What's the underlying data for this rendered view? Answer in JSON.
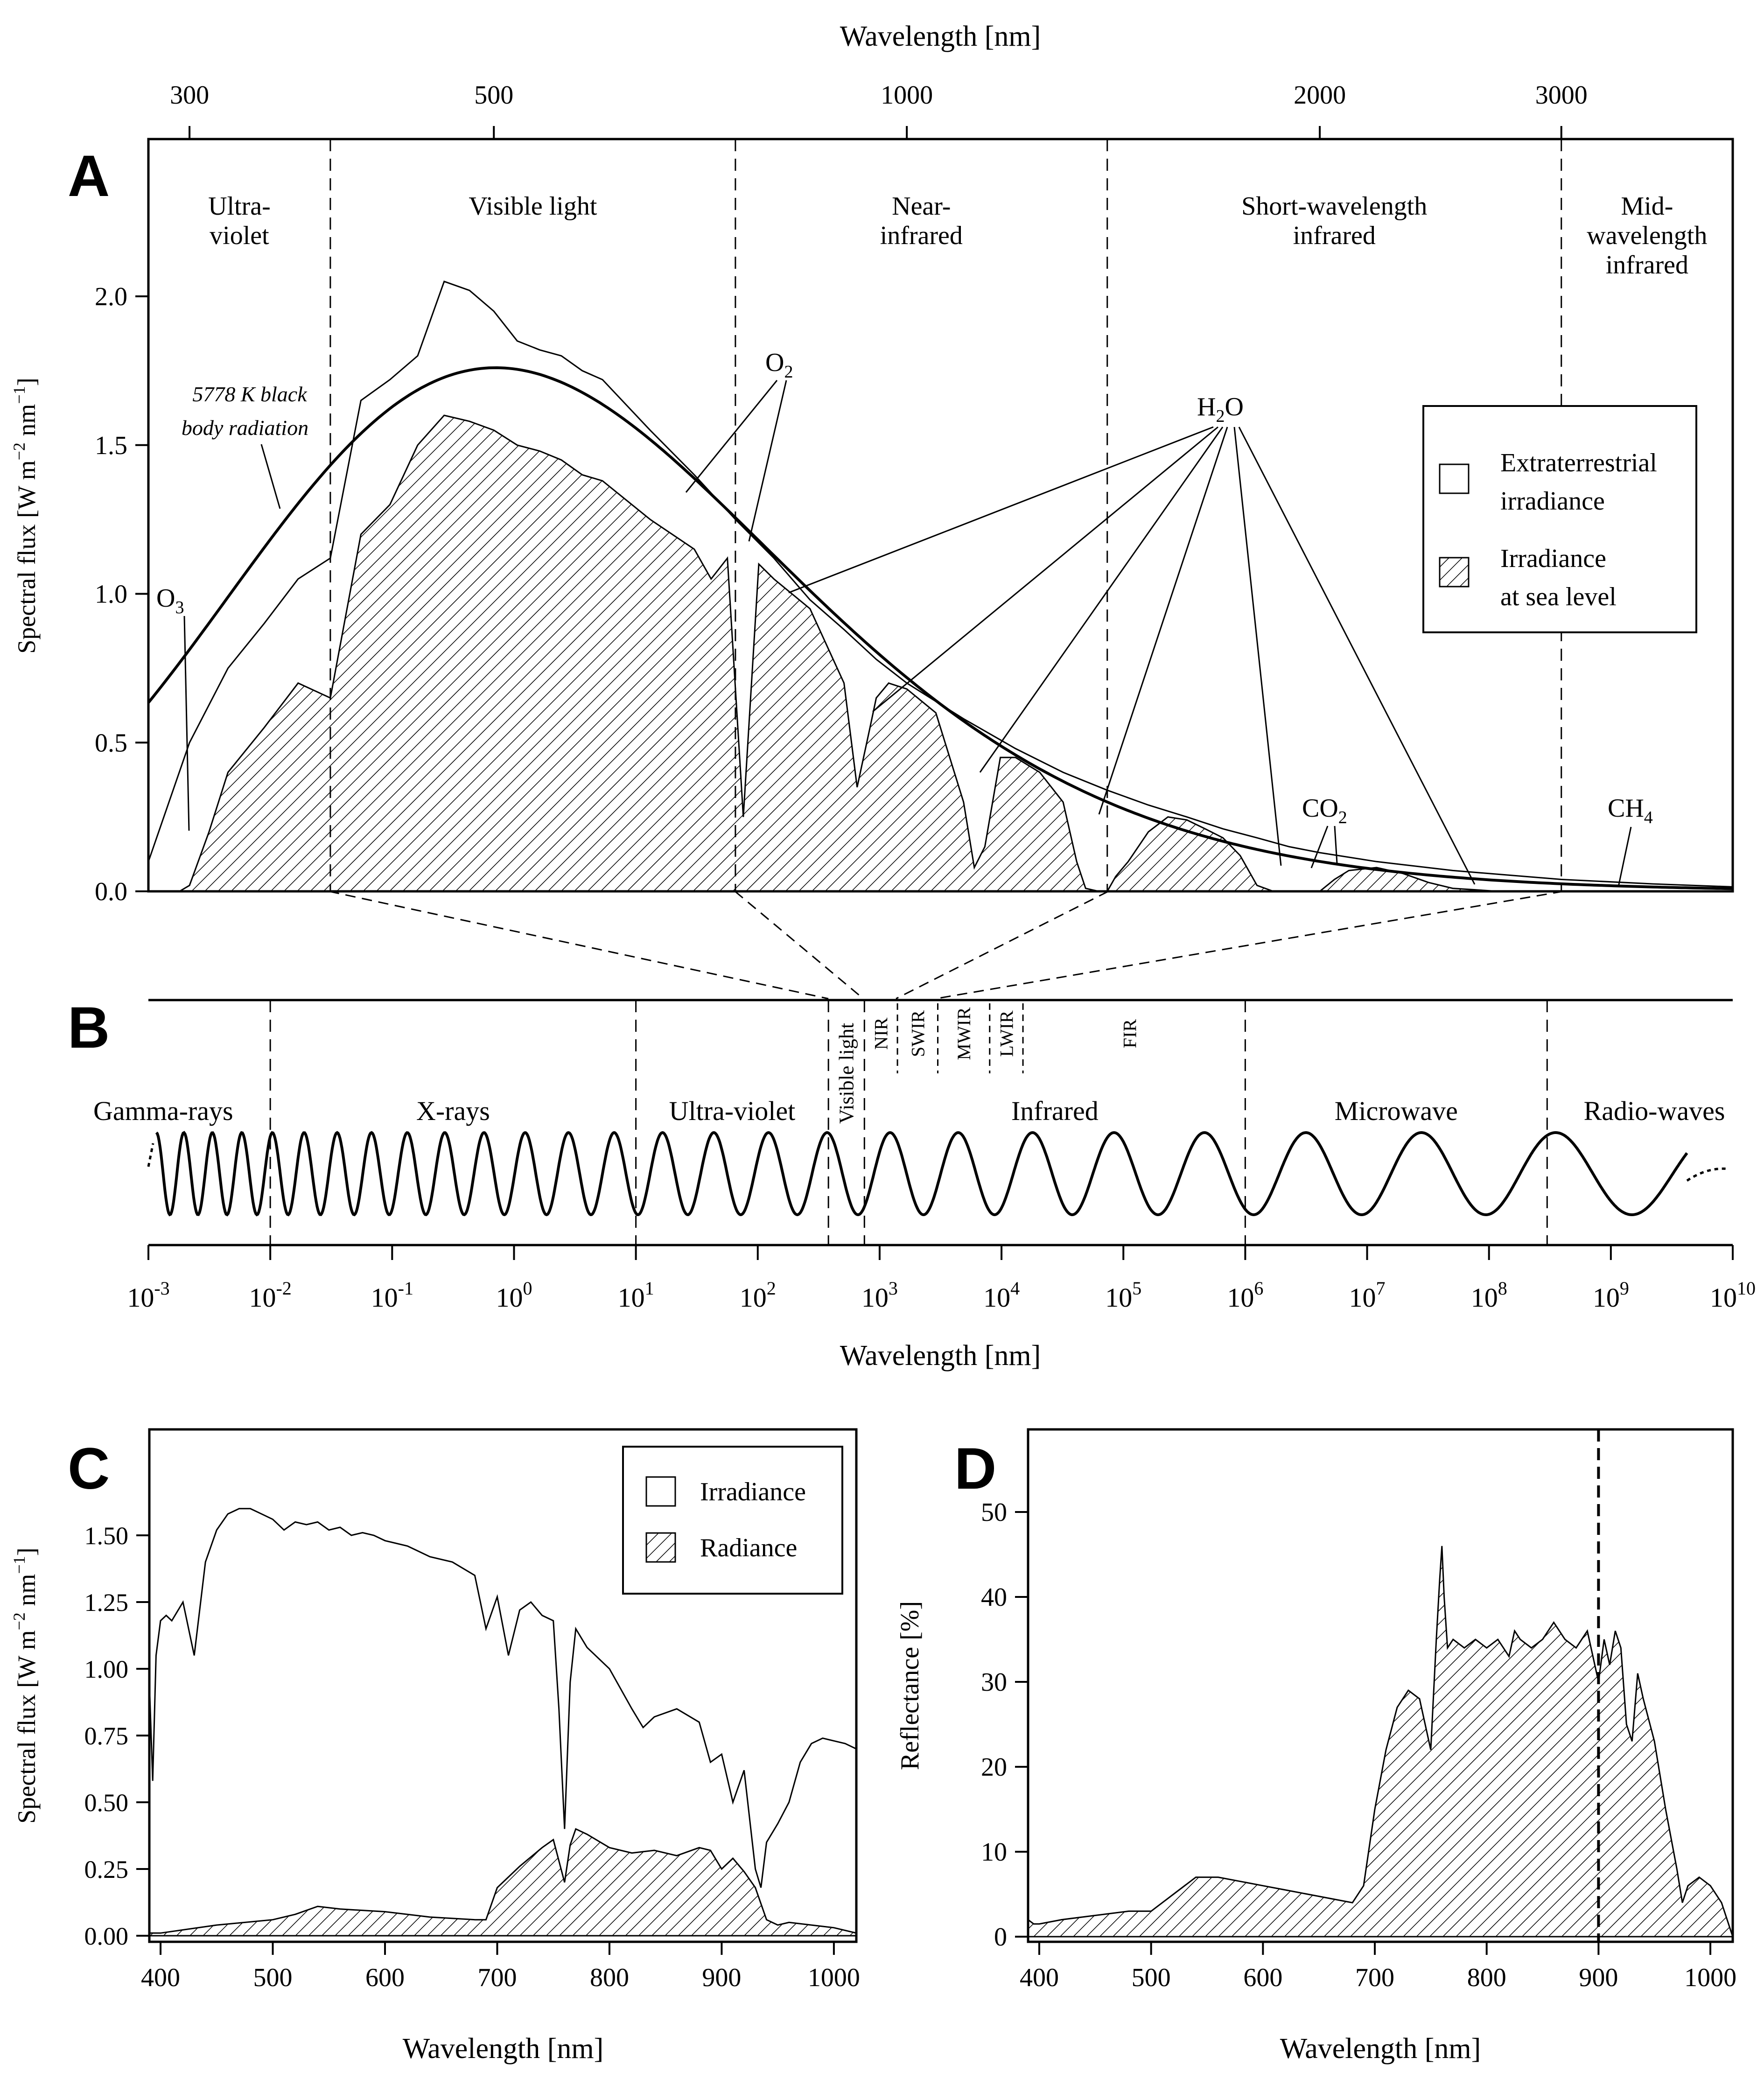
{
  "chart_data": [
    {
      "panel": "A",
      "type": "area",
      "top_axis_label": "Wavelength [nm]",
      "top_ticks": [
        "300",
        "500",
        "1000",
        "2000",
        "3000"
      ],
      "top_tick_values": [
        300,
        500,
        1000,
        2000,
        3000
      ],
      "ylabel_text": "Spectral flux [W m",
      "ylabel_unit": "nm",
      "ylabel_exp1": "−2",
      "ylabel_exp2": "−1",
      "ylabel_close": "]",
      "yticks": [
        "0.0",
        "0.5",
        "1.0",
        "1.5",
        "2.0"
      ],
      "ylim": [
        0,
        2.1
      ],
      "xlim_nm": [
        280,
        4000
      ],
      "regions": [
        {
          "label_lines": [
            "Ultra-",
            "violet"
          ]
        },
        {
          "label_lines": [
            "Visible light"
          ]
        },
        {
          "label_lines": [
            "Near-",
            "infrared"
          ]
        },
        {
          "label_lines": [
            "Short-wavelength",
            "infrared"
          ]
        },
        {
          "label_lines": [
            "Mid-",
            "wavelength",
            "infrared"
          ]
        }
      ],
      "region_boundaries_nm": [
        380,
        750,
        1400,
        3000
      ],
      "blackbody_label_lines": [
        "5778 K black",
        "body radiation"
      ],
      "molecules": {
        "O3": {
          "base": "O",
          "sub": "3"
        },
        "O2": {
          "base": "O",
          "sub": "2"
        },
        "H2O": {
          "base": "H",
          "sub": "2",
          "tail": "O"
        },
        "CO2": {
          "base": "CO",
          "sub": "2"
        },
        "CH4": {
          "base": "CH",
          "sub": "4"
        }
      },
      "legend": [
        "Extraterrestrial",
        "irradiance",
        "Irradiance",
        "at sea level"
      ],
      "legend_placement": "right",
      "series": [
        {
          "name": "Extraterrestrial irradiance",
          "x": [
            280,
            300,
            320,
            340,
            360,
            380,
            400,
            420,
            440,
            460,
            480,
            500,
            520,
            540,
            560,
            580,
            600,
            650,
            700,
            750,
            800,
            850,
            900,
            950,
            1000,
            1100,
            1200,
            1300,
            1400,
            1500,
            1600,
            1700,
            1800,
            1900,
            2000,
            2200,
            2500,
            3000,
            3500,
            4000
          ],
          "y": [
            0.1,
            0.5,
            0.75,
            0.9,
            1.05,
            1.12,
            1.65,
            1.72,
            1.8,
            2.05,
            2.02,
            1.95,
            1.85,
            1.82,
            1.8,
            1.75,
            1.72,
            1.55,
            1.4,
            1.25,
            1.12,
            0.98,
            0.88,
            0.78,
            0.7,
            0.58,
            0.48,
            0.4,
            0.34,
            0.29,
            0.25,
            0.21,
            0.18,
            0.15,
            0.13,
            0.1,
            0.07,
            0.04,
            0.025,
            0.015
          ]
        },
        {
          "name": "Irradiance at sea level",
          "x": [
            280,
            295,
            300,
            310,
            320,
            340,
            360,
            380,
            400,
            420,
            440,
            460,
            480,
            500,
            520,
            540,
            560,
            580,
            600,
            650,
            700,
            720,
            740,
            760,
            780,
            800,
            850,
            900,
            920,
            940,
            950,
            970,
            1000,
            1050,
            1100,
            1120,
            1140,
            1170,
            1200,
            1250,
            1300,
            1330,
            1350,
            1380,
            1400,
            1420,
            1450,
            1500,
            1550,
            1600,
            1650,
            1700,
            1750,
            1800,
            1850,
            1900,
            2000,
            2050,
            2100,
            2200,
            2300,
            2400,
            2500,
            2600,
            2700
          ],
          "y": [
            0,
            0,
            0.02,
            0.2,
            0.4,
            0.55,
            0.7,
            0.65,
            1.2,
            1.3,
            1.5,
            1.6,
            1.58,
            1.55,
            1.5,
            1.48,
            1.45,
            1.4,
            1.38,
            1.25,
            1.15,
            1.05,
            1.12,
            0.25,
            1.1,
            1.05,
            0.95,
            0.7,
            0.35,
            0.55,
            0.65,
            0.7,
            0.68,
            0.6,
            0.3,
            0.08,
            0.15,
            0.45,
            0.45,
            0.4,
            0.3,
            0.1,
            0.01,
            0.0,
            0.0,
            0.05,
            0.1,
            0.2,
            0.25,
            0.24,
            0.21,
            0.18,
            0.12,
            0.02,
            0.0,
            0.0,
            0.0,
            0.04,
            0.07,
            0.08,
            0.06,
            0.03,
            0.01,
            0.005,
            0.0
          ]
        },
        {
          "name": "5778 K black body radiation",
          "kind": "planck",
          "temperature_K": 5778,
          "peak": 1.76
        }
      ]
    },
    {
      "panel": "B",
      "type": "diagram",
      "xlabel": "Wavelength [nm]",
      "xlog_range": [
        -3,
        10
      ],
      "tick_base": "10",
      "tick_exponents": [
        "-3",
        "-2",
        "-1",
        "0",
        "1",
        "2",
        "3",
        "4",
        "5",
        "6",
        "7",
        "8",
        "9",
        "10"
      ],
      "bands": [
        "Gamma-rays",
        "X-rays",
        "Ultra-violet",
        "Visible light",
        "Infrared",
        "Microwave",
        "Radio-waves"
      ],
      "band_boundaries_nm": [
        0.01,
        10,
        380,
        750,
        1000000,
        300000000
      ],
      "infrared_subbands": [
        "NIR",
        "SWIR",
        "MWIR",
        "LWIR",
        "FIR"
      ],
      "infrared_subband_boundaries_nm": [
        1400,
        3000,
        8000,
        15000
      ]
    },
    {
      "panel": "C",
      "type": "area",
      "xlabel": "Wavelength [nm]",
      "xticks": [
        "400",
        "500",
        "600",
        "700",
        "800",
        "900",
        "1000"
      ],
      "xtick_values": [
        400,
        500,
        600,
        700,
        800,
        900,
        1000
      ],
      "xlim": [
        390,
        1020
      ],
      "ylabel_text": "Spectral flux [W m",
      "ylabel_unit": "nm",
      "ylabel_exp1": "−2",
      "ylabel_exp2": "−1",
      "ylabel_close": "]",
      "yticks": [
        "0.00",
        "0.25",
        "0.50",
        "0.75",
        "1.00",
        "1.25",
        "1.50"
      ],
      "ylim": [
        0,
        1.7
      ],
      "legend": [
        "Irradiance",
        "Radiance"
      ],
      "legend_placement": "top-right",
      "series": [
        {
          "name": "Irradiance",
          "x": [
            390,
            393,
            396,
            400,
            405,
            410,
            420,
            430,
            440,
            450,
            460,
            470,
            480,
            490,
            500,
            510,
            520,
            530,
            540,
            550,
            560,
            570,
            580,
            590,
            600,
            620,
            640,
            660,
            680,
            690,
            700,
            710,
            720,
            730,
            740,
            750,
            755,
            760,
            765,
            770,
            780,
            800,
            820,
            830,
            840,
            860,
            880,
            890,
            900,
            910,
            920,
            930,
            935,
            940,
            950,
            960,
            970,
            980,
            990,
            1000,
            1010,
            1020
          ],
          "y": [
            0.95,
            0.58,
            1.05,
            1.18,
            1.2,
            1.18,
            1.25,
            1.05,
            1.4,
            1.52,
            1.58,
            1.6,
            1.6,
            1.58,
            1.56,
            1.52,
            1.55,
            1.54,
            1.55,
            1.52,
            1.53,
            1.5,
            1.51,
            1.5,
            1.48,
            1.46,
            1.42,
            1.4,
            1.35,
            1.15,
            1.27,
            1.05,
            1.22,
            1.25,
            1.2,
            1.18,
            0.85,
            0.4,
            0.95,
            1.15,
            1.08,
            1.0,
            0.85,
            0.78,
            0.82,
            0.85,
            0.8,
            0.65,
            0.68,
            0.5,
            0.62,
            0.25,
            0.18,
            0.35,
            0.42,
            0.5,
            0.65,
            0.72,
            0.74,
            0.73,
            0.72,
            0.7
          ]
        },
        {
          "name": "Radiance",
          "x": [
            390,
            400,
            450,
            500,
            520,
            540,
            560,
            600,
            640,
            680,
            690,
            700,
            720,
            740,
            750,
            760,
            765,
            770,
            780,
            800,
            820,
            840,
            860,
            880,
            890,
            900,
            910,
            920,
            930,
            940,
            950,
            960,
            980,
            1000,
            1010,
            1020
          ],
          "y": [
            0.01,
            0.01,
            0.04,
            0.06,
            0.08,
            0.11,
            0.1,
            0.09,
            0.07,
            0.06,
            0.06,
            0.18,
            0.26,
            0.33,
            0.36,
            0.2,
            0.34,
            0.4,
            0.38,
            0.33,
            0.31,
            0.32,
            0.3,
            0.33,
            0.32,
            0.25,
            0.29,
            0.24,
            0.18,
            0.06,
            0.04,
            0.05,
            0.04,
            0.03,
            0.02,
            0.01
          ]
        }
      ]
    },
    {
      "panel": "D",
      "type": "area",
      "xlabel": "Wavelength [nm]",
      "xticks": [
        "400",
        "500",
        "600",
        "700",
        "800",
        "900",
        "1000"
      ],
      "xtick_values": [
        400,
        500,
        600,
        700,
        800,
        900,
        1000
      ],
      "xlim": [
        390,
        1020
      ],
      "ylabel": "Reflectance [%]",
      "yticks": [
        "0",
        "10",
        "20",
        "30",
        "40",
        "50"
      ],
      "ylim": [
        0,
        53
      ],
      "marker_nm": 900,
      "series": [
        {
          "name": "Reflectance",
          "x": [
            390,
            395,
            400,
            420,
            450,
            480,
            500,
            520,
            540,
            560,
            580,
            600,
            620,
            640,
            660,
            680,
            690,
            700,
            710,
            720,
            730,
            740,
            750,
            755,
            758,
            760,
            762,
            765,
            770,
            780,
            790,
            800,
            810,
            820,
            825,
            830,
            840,
            850,
            860,
            870,
            880,
            890,
            895,
            900,
            905,
            910,
            915,
            920,
            925,
            930,
            935,
            940,
            950,
            960,
            970,
            975,
            980,
            990,
            1000,
            1010,
            1020
          ],
          "y": [
            2,
            1.5,
            1.5,
            2,
            2.5,
            3,
            3,
            5,
            7,
            7,
            6.5,
            6,
            5.5,
            5,
            4.5,
            4,
            6,
            15,
            22,
            27,
            29,
            28,
            22,
            35,
            42,
            46,
            40,
            34,
            35,
            34,
            35,
            34,
            35,
            33,
            36,
            35,
            34,
            35,
            37,
            35,
            34,
            36,
            33,
            30,
            35,
            32,
            36,
            34,
            25,
            23,
            31,
            28,
            23,
            15,
            8,
            4,
            6,
            7,
            6,
            4,
            0
          ]
        }
      ]
    }
  ]
}
